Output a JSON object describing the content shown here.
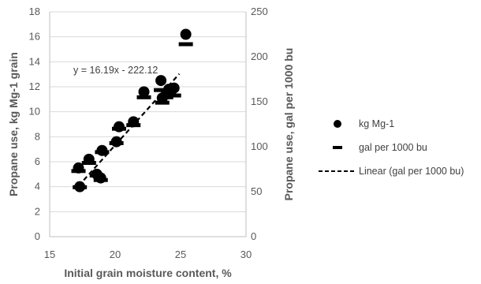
{
  "chart_data": {
    "type": "scatter",
    "x_axis": {
      "label": "Initial grain moisture content, %",
      "min": 15,
      "max": 30,
      "ticks": [
        "15",
        "20",
        "25",
        "30"
      ]
    },
    "y_axis_left": {
      "label": "Propane use, kg Mg-1 grain",
      "min": 0,
      "max": 18,
      "ticks": [
        "0",
        "2",
        "4",
        "6",
        "8",
        "10",
        "12",
        "14",
        "16",
        "18"
      ]
    },
    "y_axis_right": {
      "label": "Propane use, gal per 1000 bu",
      "min": 0,
      "max": 250,
      "ticks": [
        "0",
        "50",
        "100",
        "150",
        "200",
        "250"
      ]
    },
    "grid": true,
    "series": [
      {
        "name": "kg Mg-1",
        "marker": "circle",
        "axis": "left",
        "color": "#000000",
        "points": [
          [
            17.2,
            5.5
          ],
          [
            17.3,
            4.0
          ],
          [
            18.0,
            6.2
          ],
          [
            18.6,
            5.0
          ],
          [
            18.9,
            4.7
          ],
          [
            19.0,
            6.9
          ],
          [
            20.1,
            7.6
          ],
          [
            20.3,
            8.8
          ],
          [
            21.4,
            9.2
          ],
          [
            22.2,
            11.6
          ],
          [
            23.5,
            12.5
          ],
          [
            23.6,
            11.1
          ],
          [
            23.9,
            11.4
          ],
          [
            24.1,
            11.8
          ],
          [
            24.5,
            11.9
          ],
          [
            25.4,
            16.2
          ]
        ]
      },
      {
        "name": "gal per 1000 bu",
        "marker": "dash",
        "axis": "right",
        "color": "#000000",
        "points": [
          [
            17.2,
            73
          ],
          [
            17.3,
            55
          ],
          [
            18.0,
            82
          ],
          [
            18.6,
            68
          ],
          [
            18.9,
            63
          ],
          [
            19.0,
            94
          ],
          [
            20.1,
            104
          ],
          [
            20.3,
            120
          ],
          [
            21.4,
            124
          ],
          [
            22.2,
            155
          ],
          [
            23.5,
            163
          ],
          [
            23.6,
            149
          ],
          [
            23.9,
            155
          ],
          [
            24.1,
            159
          ],
          [
            24.5,
            157
          ],
          [
            25.4,
            214
          ]
        ]
      }
    ],
    "trendline": {
      "name": "Linear (gal per 1000 bu)",
      "style": "dashed",
      "axis": "right",
      "slope": 16.19,
      "intercept": -222.12,
      "x_range": [
        17.2,
        24.9
      ],
      "equation_label": "y = 16.19x - 222.12"
    },
    "legend_position": "right"
  }
}
